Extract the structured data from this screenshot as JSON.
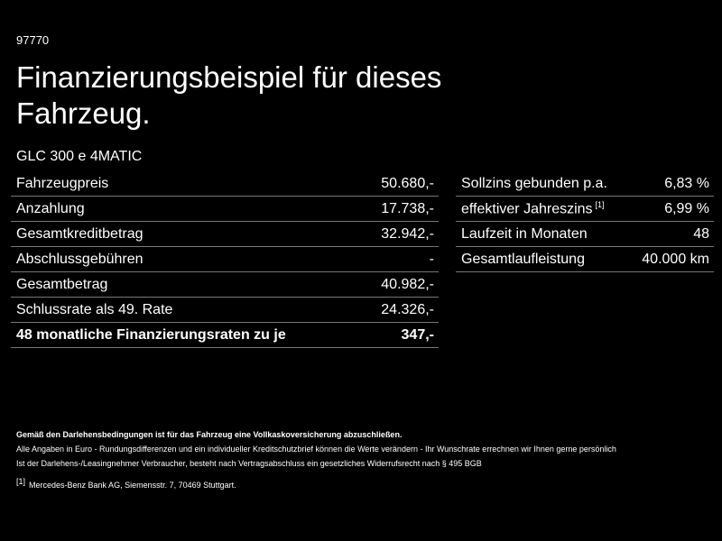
{
  "id": "97770",
  "title": "Finanzierungsbeispiel für dieses Fahrzeug.",
  "model": "GLC 300 e 4MATIC",
  "left_table": {
    "rows": [
      {
        "label": "Fahrzeugpreis",
        "value": "50.680,-"
      },
      {
        "label": "Anzahlung",
        "value": "17.738,-"
      },
      {
        "label": "Gesamtkreditbetrag",
        "value": "32.942,-"
      },
      {
        "label": "Abschlussgebühren",
        "value": "-"
      },
      {
        "label": "Gesamtbetrag",
        "value": "40.982,-"
      },
      {
        "label": "Schlussrate als 49. Rate",
        "value": "24.326,-"
      },
      {
        "label": "48 monatliche Finanzierungsraten zu je",
        "value": "347,-"
      }
    ]
  },
  "right_table": {
    "rows": [
      {
        "label": "Sollzins gebunden p.a.",
        "value": "6,83 %"
      },
      {
        "label": "effektiver Jahreszins",
        "ref": "[1]",
        "value": "6,99 %"
      },
      {
        "label": "Laufzeit in Monaten",
        "value": "48"
      },
      {
        "label": "Gesamtlaufleistung",
        "value": "40.000 km"
      }
    ]
  },
  "footer": {
    "bold": "Gemäß den Darlehensbedingungen ist für das Fahrzeug eine Vollkaskoversicherung abzuschließen.",
    "lines": [
      "Alle Angaben in Euro - Rundungsdifferenzen und ein individueller Kreditschutzbrief können die Werte verändern - Ihr Wunschrate errechnen wir Ihnen gerne persönlich",
      "Ist der Darlehens-/Leasingnehmer Verbraucher, besteht nach Vertragsabschluss ein gesetzliches Widerrufsrecht nach § 495 BGB"
    ],
    "footnote": {
      "ref": "[1]",
      "text": "Mercedes-Benz Bank AG, Siemensstr. 7, 70469 Stuttgart."
    }
  }
}
